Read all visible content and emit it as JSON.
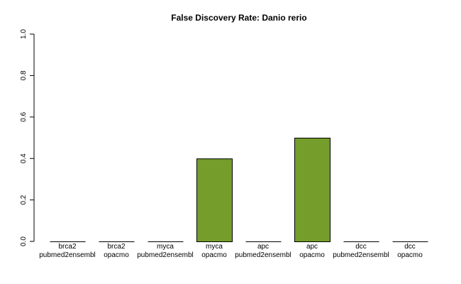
{
  "chart_data": {
    "type": "bar",
    "title": "False Discovery Rate: Danio rerio",
    "xlabel": "",
    "ylabel": "",
    "ylim": [
      0,
      1
    ],
    "yticks": [
      "0.0",
      "0.2",
      "0.4",
      "0.6",
      "0.8",
      "1.0"
    ],
    "ytick_values": [
      0,
      0.2,
      0.4,
      0.6,
      0.8,
      1.0
    ],
    "categories": [
      {
        "gene": "brca2",
        "method": "pubmed2ensembl"
      },
      {
        "gene": "brca2",
        "method": "opacmo"
      },
      {
        "gene": "myca",
        "method": "pubmed2ensembl"
      },
      {
        "gene": "myca",
        "method": "opacmo"
      },
      {
        "gene": "apc",
        "method": "pubmed2ensembl"
      },
      {
        "gene": "apc",
        "method": "opacmo"
      },
      {
        "gene": "dcc",
        "method": "pubmed2ensembl"
      },
      {
        "gene": "dcc",
        "method": "opacmo"
      }
    ],
    "values": [
      0,
      0,
      0,
      0.4,
      0,
      0.5,
      0,
      0
    ],
    "bar_color": "#749d2b",
    "bar_edge_color": "#000000",
    "grid": false,
    "legend": false
  }
}
